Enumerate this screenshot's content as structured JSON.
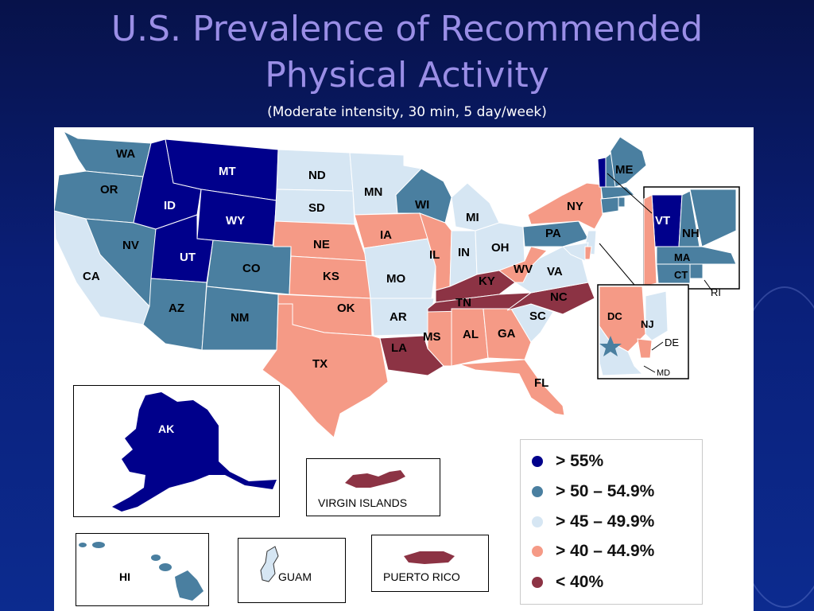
{
  "title_line1": "U.S. Prevalence of Recommended",
  "title_line2": "Physical Activity",
  "subtitle": "(Moderate intensity, 30 min, 5 day/week)",
  "colors": {
    "gt55": "#00008b",
    "c50_549": "#4a7fa0",
    "c45_499": "#d6e6f3",
    "c40_449": "#f59a86",
    "lt40": "#8c3344"
  },
  "legend": [
    {
      "label": "> 55%",
      "color": "#00008b"
    },
    {
      "label": "> 50 – 54.9%",
      "color": "#4a7fa0"
    },
    {
      "label": "> 45 – 49.9%",
      "color": "#d6e6f3"
    },
    {
      "label": "> 40 – 44.9%",
      "color": "#f59a86"
    },
    {
      "label": "< 40%",
      "color": "#8c3344"
    }
  ],
  "states": {
    "WA": "WA",
    "OR": "OR",
    "CA": "CA",
    "ID": "ID",
    "NV": "NV",
    "MT": "MT",
    "WY": "WY",
    "UT": "UT",
    "AZ": "AZ",
    "CO": "CO",
    "NM": "NM",
    "ND": "ND",
    "SD": "SD",
    "NE": "NE",
    "KS": "KS",
    "OK": "OK",
    "TX": "TX",
    "MN": "MN",
    "IA": "IA",
    "MO": "MO",
    "AR": "AR",
    "LA": "LA",
    "WI": "WI",
    "IL": "IL",
    "MS": "MS",
    "MI": "MI",
    "IN": "IN",
    "OH": "OH",
    "KY": "KY",
    "TN": "TN",
    "AL": "AL",
    "GA": "GA",
    "FL": "FL",
    "SC": "SC",
    "NC": "NC",
    "VA": "VA",
    "WV": "WV",
    "PA": "PA",
    "NY": "NY",
    "ME": "ME",
    "VT": "VT",
    "NH": "NH",
    "MA": "MA",
    "CT": "CT",
    "RI": "RI",
    "NJ": "NJ",
    "DE": "DE",
    "MD": "MD",
    "DC": "DC"
  },
  "insets": {
    "alaska": "AK",
    "hawaii": "HI",
    "virgin_islands": "VIRGIN ISLANDS",
    "guam": "GUAM",
    "puerto_rico": "PUERTO RICO"
  }
}
